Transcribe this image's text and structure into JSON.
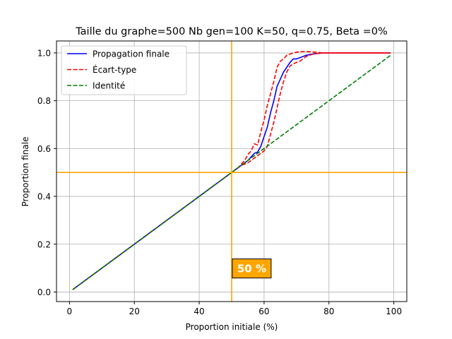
{
  "chart_data": {
    "type": "line",
    "title": "Taille du graphe=500 Nb gen=100 K=50, q=0.75, Beta =0%",
    "xlabel": "Proportion initiale (%)",
    "ylabel": "Proportion finale",
    "xlim": [
      -4,
      104
    ],
    "ylim": [
      -0.04,
      1.05
    ],
    "xticks": [
      0,
      20,
      40,
      60,
      80,
      100
    ],
    "xtick_labels": [
      "0",
      "20",
      "40",
      "60",
      "80",
      "100"
    ],
    "yticks": [
      0.0,
      0.2,
      0.4,
      0.6,
      0.8,
      1.0
    ],
    "ytick_labels": [
      "0.0",
      "0.2",
      "0.4",
      "0.6",
      "0.8",
      "1.0"
    ],
    "grid": true,
    "legend_position": "top-left",
    "series": [
      {
        "name": "Propagation finale",
        "color": "#0000ff",
        "style": "solid",
        "x": [
          1,
          5,
          10,
          15,
          20,
          25,
          30,
          35,
          40,
          45,
          50,
          51,
          52,
          53,
          54,
          55,
          56,
          57,
          58,
          59,
          60,
          61,
          62,
          63,
          64,
          65,
          66,
          67,
          68,
          69,
          70,
          71,
          72,
          73,
          74,
          75,
          76,
          78,
          80,
          85,
          90,
          95,
          99
        ],
        "y": [
          0.01,
          0.05,
          0.1,
          0.15,
          0.2,
          0.25,
          0.3,
          0.35,
          0.4,
          0.45,
          0.5,
          0.51,
          0.52,
          0.53,
          0.54,
          0.55,
          0.565,
          0.58,
          0.585,
          0.61,
          0.65,
          0.69,
          0.75,
          0.8,
          0.86,
          0.89,
          0.92,
          0.94,
          0.96,
          0.975,
          0.975,
          0.98,
          0.985,
          0.99,
          0.993,
          0.995,
          0.997,
          1.0,
          1.0,
          1.0,
          1.0,
          1.0,
          1.0
        ]
      },
      {
        "name": "Écart-type",
        "color": "#ff0000",
        "style": "dashed",
        "x": [
          1,
          5,
          10,
          15,
          20,
          25,
          30,
          35,
          40,
          45,
          50,
          51,
          52,
          53,
          54,
          55,
          56,
          57,
          58,
          59,
          60,
          61,
          62,
          63,
          64,
          65,
          66,
          67,
          68,
          69,
          70,
          71,
          72,
          73,
          74,
          75,
          76,
          78,
          80,
          85,
          90,
          95,
          99
        ],
        "y": [
          0.01,
          0.05,
          0.1,
          0.15,
          0.2,
          0.25,
          0.3,
          0.35,
          0.4,
          0.45,
          0.5,
          0.51,
          0.52,
          0.535,
          0.55,
          0.575,
          0.59,
          0.62,
          0.615,
          0.67,
          0.72,
          0.78,
          0.83,
          0.88,
          0.94,
          0.965,
          0.975,
          0.99,
          0.995,
          1.0,
          1.003,
          1.005,
          1.006,
          1.006,
          1.005,
          1.004,
          1.003,
          1.0,
          1.0,
          1.0,
          1.0,
          1.0,
          1.0
        ]
      },
      {
        "name": "",
        "color": "#ff0000",
        "style": "dashed",
        "x": [
          1,
          5,
          10,
          15,
          20,
          25,
          30,
          35,
          40,
          45,
          50,
          51,
          52,
          53,
          54,
          55,
          56,
          57,
          58,
          59,
          60,
          61,
          62,
          63,
          64,
          65,
          66,
          67,
          68,
          69,
          70,
          71,
          72,
          73,
          74,
          75,
          76,
          78,
          80,
          85,
          90,
          95,
          99
        ],
        "y": [
          0.01,
          0.05,
          0.1,
          0.15,
          0.2,
          0.25,
          0.3,
          0.35,
          0.4,
          0.45,
          0.5,
          0.51,
          0.52,
          0.53,
          0.535,
          0.54,
          0.55,
          0.56,
          0.57,
          0.58,
          0.59,
          0.61,
          0.66,
          0.71,
          0.77,
          0.83,
          0.88,
          0.92,
          0.945,
          0.955,
          0.96,
          0.965,
          0.975,
          0.985,
          0.99,
          0.995,
          0.997,
          1.0,
          1.0,
          1.0,
          1.0,
          1.0,
          1.0
        ]
      },
      {
        "name": "Identité",
        "color": "#008000",
        "style": "dashed",
        "x": [
          1,
          99
        ],
        "y": [
          0.01,
          0.99
        ]
      }
    ],
    "reference_lines": {
      "vertical_x": 50,
      "horizontal_y": 0.5,
      "color": "#ffa500"
    },
    "annotation": {
      "text": "50 %",
      "x": 50.2,
      "y": 0.1,
      "background": "#ffa500",
      "color": "#ffffff"
    }
  }
}
